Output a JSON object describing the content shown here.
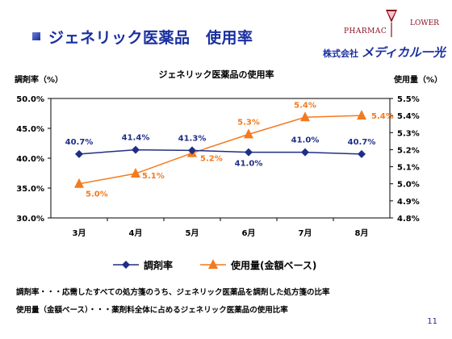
{
  "slide": {
    "title": "ジェネリック医薬品　使用率",
    "page_number": "11"
  },
  "logo": {
    "pharmac": "PHARMAC",
    "lower": "LOWER",
    "company_prefix": "株式会社",
    "company_name": "メディカル一光"
  },
  "notes": [
    "調剤率・・・応需したすべての処方箋のうち、ジェネリック医薬品を調剤した処方箋の比率",
    "使用量（金額ベース）・・・薬剤料全体に占めるジェネリック医薬品の使用比率"
  ],
  "colors": {
    "title": "#1a2fa0",
    "series_rate": "#1f2e86",
    "series_usage": "#f47a1f"
  },
  "chart_data": {
    "type": "line",
    "title": "ジェネリック医薬品の使用率",
    "categories": [
      "3月",
      "4月",
      "5月",
      "6月",
      "7月",
      "8月"
    ],
    "y_left": {
      "label": "調剤率（%）",
      "ticks": [
        "50.0%",
        "45.0%",
        "40.0%",
        "35.0%",
        "30.0%"
      ],
      "range": [
        30.0,
        50.0
      ]
    },
    "y_right": {
      "label": "使用量（%）",
      "ticks": [
        "5.5%",
        "5.4%",
        "5.3%",
        "5.2%",
        "5.1%",
        "5.0%",
        "4.9%",
        "4.8%"
      ],
      "range": [
        4.8,
        5.5
      ]
    },
    "series": [
      {
        "name": "調剤率",
        "axis": "left",
        "marker": "diamond",
        "values": [
          40.7,
          41.4,
          41.3,
          41.0,
          41.0,
          40.7
        ],
        "labels": [
          "40.7%",
          "41.4%",
          "41.3%",
          "41.0%",
          "41.0%",
          "40.7%"
        ]
      },
      {
        "name": "使用量(金額ベース)",
        "axis": "right",
        "marker": "triangle",
        "values": [
          5.0,
          5.06,
          5.18,
          5.29,
          5.39,
          5.4
        ],
        "labels": [
          "5.0%",
          "5.1%",
          "5.2%",
          "5.3%",
          "5.4%",
          "5.4%"
        ]
      }
    ],
    "legend": "bottom",
    "grid": false
  }
}
